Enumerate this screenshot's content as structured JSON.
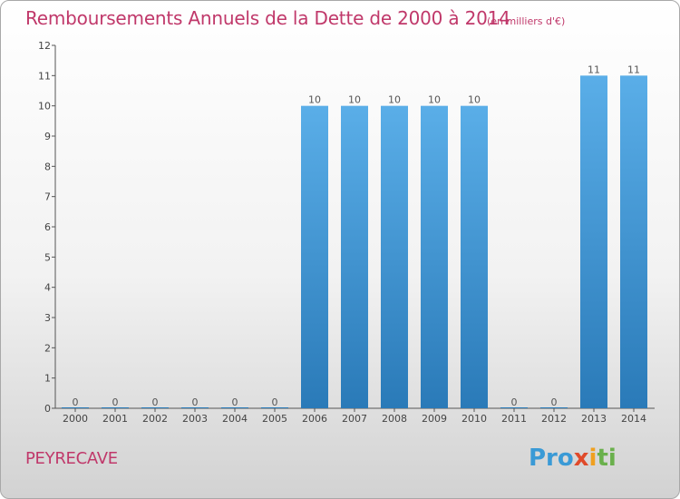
{
  "header": {
    "title": "Remboursements Annuels de la Dette de 2000 à 2014",
    "unit": "(en milliers d'€)"
  },
  "footer": {
    "commune": "PEYRECAVE",
    "logo": [
      "Pro",
      "x",
      "i",
      "ti"
    ]
  },
  "colors": {
    "title": "#c0386a",
    "bar_light": "#5aaee8",
    "bar_dark": "#2a7ab8",
    "axis": "#555555"
  },
  "chart_data": {
    "type": "bar",
    "title": "Remboursements Annuels de la Dette de 2000 à 2014",
    "subtitle": "(en milliers d'€)",
    "xlabel": "",
    "ylabel": "",
    "categories": [
      "2000",
      "2001",
      "2002",
      "2003",
      "2004",
      "2005",
      "2006",
      "2007",
      "2008",
      "2009",
      "2010",
      "2011",
      "2012",
      "2013",
      "2014"
    ],
    "values": [
      0,
      0,
      0,
      0,
      0,
      0,
      10,
      10,
      10,
      10,
      10,
      0,
      0,
      11,
      11
    ],
    "data_labels": [
      "0",
      "0",
      "0",
      "0",
      "0",
      "0",
      "10",
      "10",
      "10",
      "10",
      "10",
      "0",
      "0",
      "11",
      "11"
    ],
    "ylim": [
      0,
      12
    ],
    "yticks": [
      0,
      1,
      2,
      3,
      4,
      5,
      6,
      7,
      8,
      9,
      10,
      11,
      12
    ],
    "grid": false,
    "legend": "none"
  }
}
